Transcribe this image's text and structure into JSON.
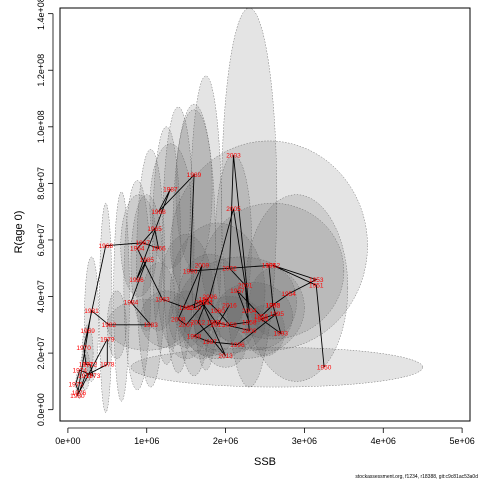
{
  "chart_data": {
    "type": "scatter",
    "title": "",
    "xlabel": "SSB",
    "ylabel": "R(age 0)",
    "xlim": [
      -100000,
      5100000
    ],
    "ylim": [
      -4000000,
      142000000
    ],
    "x_ticks": [
      {
        "value": 0,
        "label": "0e+00"
      },
      {
        "value": 1000000,
        "label": "1e+06"
      },
      {
        "value": 2000000,
        "label": "2e+06"
      },
      {
        "value": 3000000,
        "label": "3e+06"
      },
      {
        "value": 4000000,
        "label": "4e+06"
      },
      {
        "value": 5000000,
        "label": "5e+06"
      }
    ],
    "y_ticks": [
      {
        "value": 0,
        "label": "0.0e+00"
      },
      {
        "value": 20000000,
        "label": "2.0e+07"
      },
      {
        "value": 40000000,
        "label": "4.0e+07"
      },
      {
        "value": 60000000,
        "label": "6.0e+07"
      },
      {
        "value": 80000000,
        "label": "8.0e+07"
      },
      {
        "value": 100000000,
        "label": "1.0e+08"
      },
      {
        "value": 120000000,
        "label": "1.2e+08"
      },
      {
        "value": 140000000,
        "label": "1.4e+08"
      }
    ],
    "grid": false,
    "legend": "none",
    "series": [
      {
        "type": "line",
        "points": [
          {
            "label": "1950",
            "x": 3250000,
            "y": 15000000
          },
          {
            "label": "1951",
            "x": 3150000,
            "y": 44000000
          },
          {
            "label": "1952",
            "x": 2600000,
            "y": 51000000
          },
          {
            "label": "1953",
            "x": 3150000,
            "y": 46000000
          },
          {
            "label": "1954",
            "x": 2800000,
            "y": 41000000
          },
          {
            "label": "1955",
            "x": 2600000,
            "y": 37000000
          },
          {
            "label": "1956",
            "x": 2450000,
            "y": 33000000
          },
          {
            "label": "1957",
            "x": 2150000,
            "y": 42000000
          },
          {
            "label": "1958",
            "x": 2300000,
            "y": 31000000
          },
          {
            "label": "1959",
            "x": 2050000,
            "y": 30000000
          },
          {
            "label": "1960",
            "x": 1900000,
            "y": 35000000
          },
          {
            "label": "1961",
            "x": 1750000,
            "y": 39000000
          },
          {
            "label": "1962",
            "x": 1500000,
            "y": 36000000
          },
          {
            "label": "1963",
            "x": 1200000,
            "y": 39000000
          },
          {
            "label": "1964",
            "x": 880000,
            "y": 57000000
          },
          {
            "label": "1965",
            "x": 1100000,
            "y": 64000000
          },
          {
            "label": "1966",
            "x": 1150000,
            "y": 57000000
          },
          {
            "label": "1967",
            "x": 950000,
            "y": 59000000
          },
          {
            "label": "1968",
            "x": 480000,
            "y": 58000000
          },
          {
            "label": "1969",
            "x": 250000,
            "y": 28000000
          },
          {
            "label": "1970",
            "x": 200000,
            "y": 22000000
          },
          {
            "label": "1971",
            "x": 230000,
            "y": 16000000
          },
          {
            "label": "1972",
            "x": 280000,
            "y": 16000000
          },
          {
            "label": "1973",
            "x": 320000,
            "y": 12000000
          },
          {
            "label": "1974",
            "x": 150000,
            "y": 14000000
          },
          {
            "label": "1975",
            "x": 100000,
            "y": 9000000
          },
          {
            "label": "1976",
            "x": 140000,
            "y": 6000000
          },
          {
            "label": "1977",
            "x": 220000,
            "y": 12000000
          },
          {
            "label": "1978",
            "x": 500000,
            "y": 16000000
          },
          {
            "label": "1979",
            "x": 500000,
            "y": 25000000
          },
          {
            "label": "1980",
            "x": 120000,
            "y": 5000000
          },
          {
            "label": "1981",
            "x": 300000,
            "y": 35000000
          },
          {
            "label": "1982",
            "x": 520000,
            "y": 30000000
          },
          {
            "label": "1983",
            "x": 1050000,
            "y": 30000000
          },
          {
            "label": "1984",
            "x": 800000,
            "y": 38000000
          },
          {
            "label": "1985",
            "x": 1000000,
            "y": 53000000
          },
          {
            "label": "1986",
            "x": 870000,
            "y": 46000000
          },
          {
            "label": "1987",
            "x": 1300000,
            "y": 78000000
          },
          {
            "label": "1988",
            "x": 1150000,
            "y": 70000000
          },
          {
            "label": "1989",
            "x": 1600000,
            "y": 83000000
          },
          {
            "label": "1990",
            "x": 1550000,
            "y": 49000000
          },
          {
            "label": "1991",
            "x": 2550000,
            "y": 51000000
          },
          {
            "label": "1992",
            "x": 2600000,
            "y": 37000000
          },
          {
            "label": "1993",
            "x": 2700000,
            "y": 27000000
          },
          {
            "label": "1994",
            "x": 2450000,
            "y": 32000000
          },
          {
            "label": "1995",
            "x": 2650000,
            "y": 34000000
          },
          {
            "label": "1996",
            "x": 2150000,
            "y": 23000000
          },
          {
            "label": "1997",
            "x": 1800000,
            "y": 24000000
          },
          {
            "label": "1998",
            "x": 1600000,
            "y": 26000000
          },
          {
            "label": "1999",
            "x": 1850000,
            "y": 31000000
          },
          {
            "label": "2000",
            "x": 2300000,
            "y": 28000000
          },
          {
            "label": "2001",
            "x": 2250000,
            "y": 44000000
          },
          {
            "label": "2002",
            "x": 2050000,
            "y": 50000000
          },
          {
            "label": "2003",
            "x": 2100000,
            "y": 90000000
          },
          {
            "label": "2004",
            "x": 2300000,
            "y": 35000000
          },
          {
            "label": "2005",
            "x": 2100000,
            "y": 71000000
          },
          {
            "label": "2006",
            "x": 1800000,
            "y": 40000000
          },
          {
            "label": "2007",
            "x": 1500000,
            "y": 30000000
          },
          {
            "label": "2008",
            "x": 1400000,
            "y": 32000000
          },
          {
            "label": "2009",
            "x": 1700000,
            "y": 51000000
          },
          {
            "label": "2010",
            "x": 1600000,
            "y": 36000000
          },
          {
            "label": "2011",
            "x": 1750000,
            "y": 38000000
          },
          {
            "label": "2012",
            "x": 1650000,
            "y": 31000000
          },
          {
            "label": "2013",
            "x": 2000000,
            "y": 19000000
          },
          {
            "label": "2014",
            "x": 1700000,
            "y": 38000000
          },
          {
            "label": "2015",
            "x": 1900000,
            "y": 30000000
          },
          {
            "label": "2016",
            "x": 2050000,
            "y": 37000000
          }
        ]
      }
    ],
    "uncertainty_ellipses": [
      {
        "cx": 2550000,
        "cy": 58000000,
        "rx": 1250000,
        "ry": 37000000
      },
      {
        "cx": 2300000,
        "cy": 75000000,
        "rx": 350000,
        "ry": 67000000
      },
      {
        "cx": 1750000,
        "cy": 66000000,
        "rx": 200000,
        "ry": 52000000
      },
      {
        "cx": 1600000,
        "cy": 60000000,
        "rx": 270000,
        "ry": 48000000
      },
      {
        "cx": 1400000,
        "cy": 60000000,
        "rx": 200000,
        "ry": 47000000
      },
      {
        "cx": 1250000,
        "cy": 58000000,
        "rx": 180000,
        "ry": 42000000
      },
      {
        "cx": 1050000,
        "cy": 50000000,
        "rx": 180000,
        "ry": 42000000
      },
      {
        "cx": 880000,
        "cy": 44000000,
        "rx": 170000,
        "ry": 37000000
      },
      {
        "cx": 680000,
        "cy": 40000000,
        "rx": 100000,
        "ry": 37000000
      },
      {
        "cx": 480000,
        "cy": 36000000,
        "rx": 80000,
        "ry": 37000000
      },
      {
        "cx": 2900000,
        "cy": 43000000,
        "rx": 650000,
        "ry": 33000000
      },
      {
        "cx": 2600000,
        "cy": 49000000,
        "rx": 900000,
        "ry": 24000000
      },
      {
        "cx": 2200000,
        "cy": 36000000,
        "rx": 800000,
        "ry": 18000000
      },
      {
        "cx": 1900000,
        "cy": 42000000,
        "rx": 600000,
        "ry": 24000000
      },
      {
        "cx": 2650000,
        "cy": 15000000,
        "rx": 1850000,
        "ry": 7000000
      },
      {
        "cx": 2350000,
        "cy": 33000000,
        "rx": 500000,
        "ry": 12000000
      },
      {
        "cx": 2050000,
        "cy": 30000000,
        "rx": 450000,
        "ry": 10000000
      },
      {
        "cx": 1800000,
        "cy": 37000000,
        "rx": 420000,
        "ry": 18000000
      },
      {
        "cx": 1500000,
        "cy": 40000000,
        "rx": 350000,
        "ry": 22000000
      },
      {
        "cx": 1250000,
        "cy": 32000000,
        "rx": 330000,
        "ry": 10000000
      },
      {
        "cx": 1000000,
        "cy": 52000000,
        "rx": 200000,
        "ry": 24000000
      },
      {
        "cx": 900000,
        "cy": 58000000,
        "rx": 230000,
        "ry": 18000000
      },
      {
        "cx": 1300000,
        "cy": 72000000,
        "rx": 260000,
        "ry": 22000000
      },
      {
        "cx": 1600000,
        "cy": 78000000,
        "rx": 230000,
        "ry": 28000000
      },
      {
        "cx": 2100000,
        "cy": 60000000,
        "rx": 230000,
        "ry": 30000000
      },
      {
        "cx": 2600000,
        "cy": 38000000,
        "rx": 300000,
        "ry": 12000000
      },
      {
        "cx": 2500000,
        "cy": 28000000,
        "rx": 250000,
        "ry": 9000000
      },
      {
        "cx": 2000000,
        "cy": 22000000,
        "rx": 250000,
        "ry": 7000000
      },
      {
        "cx": 1700000,
        "cy": 26000000,
        "rx": 230000,
        "ry": 8000000
      },
      {
        "cx": 1500000,
        "cy": 32000000,
        "rx": 220000,
        "ry": 10000000
      },
      {
        "cx": 1150000,
        "cy": 40000000,
        "rx": 200000,
        "ry": 12000000
      },
      {
        "cx": 1000000,
        "cy": 30000000,
        "rx": 500000,
        "ry": 9000000
      },
      {
        "cx": 620000,
        "cy": 30000000,
        "rx": 120000,
        "ry": 12000000
      },
      {
        "cx": 300000,
        "cy": 32000000,
        "rx": 90000,
        "ry": 22000000
      },
      {
        "cx": 250000,
        "cy": 20000000,
        "rx": 70000,
        "ry": 10000000
      },
      {
        "cx": 220000,
        "cy": 14000000,
        "rx": 60000,
        "ry": 7000000
      },
      {
        "cx": 150000,
        "cy": 9000000,
        "rx": 50000,
        "ry": 5000000
      }
    ]
  },
  "footer_text": "stockassessment.org, f1234, r18388, git:c9c81ac53a0d"
}
